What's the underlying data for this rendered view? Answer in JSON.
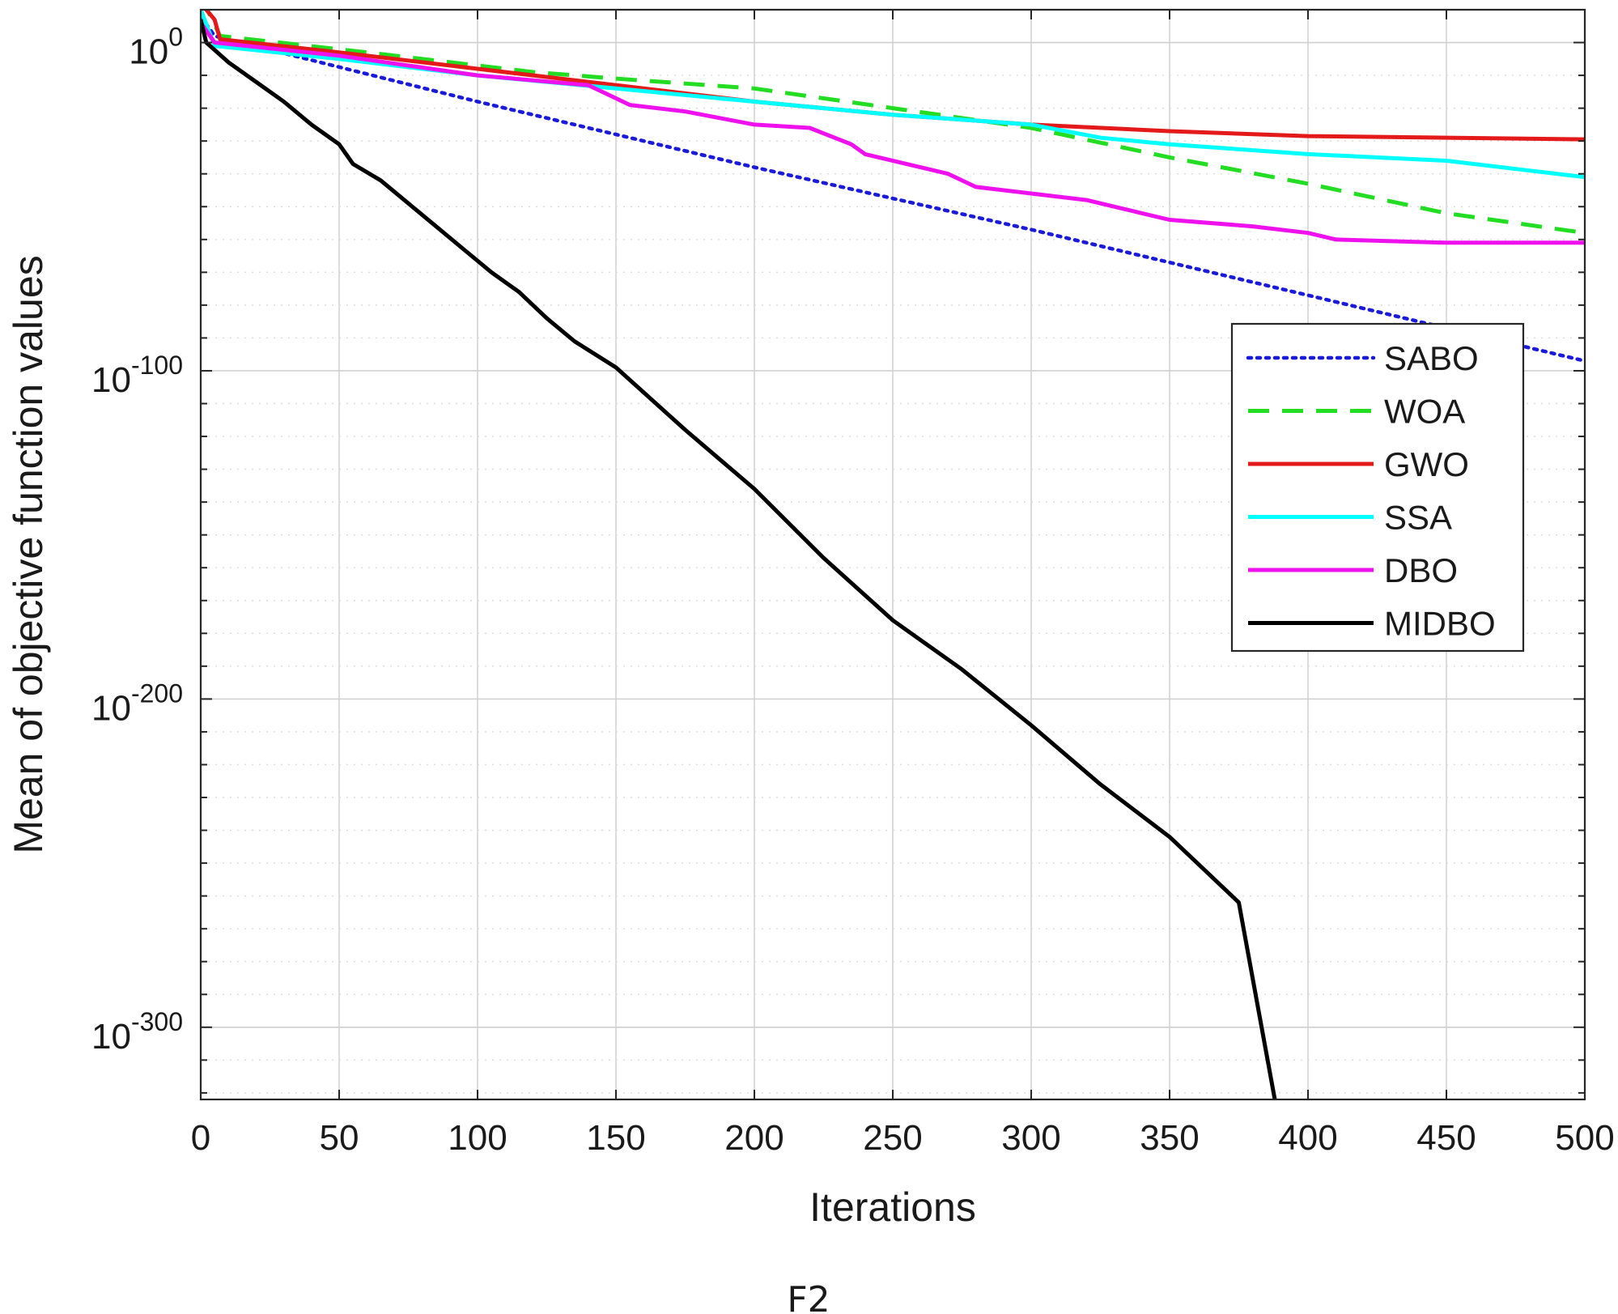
{
  "chart_data": {
    "type": "line",
    "caption": "F2",
    "xlabel": "Iterations",
    "ylabel": "Mean of objective function values",
    "yscale": "log",
    "grid": true,
    "legend_position": "right",
    "xlim": [
      0,
      500
    ],
    "ylim_log10": [
      -322,
      10
    ],
    "x_ticks": [
      0,
      50,
      100,
      150,
      200,
      250,
      300,
      350,
      400,
      450,
      500
    ],
    "x_tick_labels": [
      "0",
      "50",
      "100",
      "150",
      "200",
      "250",
      "300",
      "350",
      "400",
      "450",
      "500"
    ],
    "y_tick_exponents": [
      0,
      -100,
      -200,
      -300
    ],
    "y_tick_base": "10",
    "y_tick_sups": [
      "0",
      "-100",
      "-200",
      "-300"
    ],
    "series": [
      {
        "name": "SABO",
        "color": "#1a1adb",
        "style": "dotted",
        "points_log10": [
          [
            0,
            8
          ],
          [
            5,
            2
          ],
          [
            100,
            -18
          ],
          [
            200,
            -38
          ],
          [
            300,
            -57
          ],
          [
            400,
            -77
          ],
          [
            500,
            -97
          ]
        ]
      },
      {
        "name": "WOA",
        "color": "#22dd22",
        "style": "dashed",
        "points_log10": [
          [
            0,
            14
          ],
          [
            7,
            2
          ],
          [
            60,
            -3
          ],
          [
            120,
            -9
          ],
          [
            150,
            -11
          ],
          [
            200,
            -14
          ],
          [
            250,
            -20
          ],
          [
            300,
            -26
          ],
          [
            350,
            -35
          ],
          [
            400,
            -43
          ],
          [
            450,
            -52
          ],
          [
            500,
            -58
          ]
        ]
      },
      {
        "name": "GWO",
        "color": "#e41a1a",
        "style": "solid",
        "points_log10": [
          [
            0,
            12
          ],
          [
            5,
            7
          ],
          [
            7,
            1
          ],
          [
            50,
            -3
          ],
          [
            100,
            -8
          ],
          [
            150,
            -13
          ],
          [
            200,
            -18
          ],
          [
            250,
            -22
          ],
          [
            300,
            -25
          ],
          [
            350,
            -27
          ],
          [
            400,
            -28.5
          ],
          [
            450,
            -29
          ],
          [
            500,
            -29.5
          ]
        ]
      },
      {
        "name": "SSA",
        "color": "#00ffff",
        "style": "solid",
        "points_log10": [
          [
            0,
            10
          ],
          [
            5,
            -1
          ],
          [
            50,
            -5
          ],
          [
            100,
            -10
          ],
          [
            150,
            -14
          ],
          [
            200,
            -18
          ],
          [
            250,
            -22
          ],
          [
            300,
            -25
          ],
          [
            325,
            -29
          ],
          [
            350,
            -31
          ],
          [
            400,
            -34
          ],
          [
            450,
            -36
          ],
          [
            480,
            -39
          ],
          [
            500,
            -41
          ]
        ]
      },
      {
        "name": "DBO",
        "color": "#ee11ee",
        "style": "solid",
        "points_log10": [
          [
            0,
            6
          ],
          [
            5,
            0
          ],
          [
            50,
            -4
          ],
          [
            100,
            -10
          ],
          [
            140,
            -13
          ],
          [
            155,
            -19
          ],
          [
            175,
            -21
          ],
          [
            200,
            -25
          ],
          [
            220,
            -26
          ],
          [
            235,
            -31
          ],
          [
            240,
            -34
          ],
          [
            270,
            -40
          ],
          [
            280,
            -44
          ],
          [
            300,
            -46
          ],
          [
            320,
            -48
          ],
          [
            340,
            -52
          ],
          [
            350,
            -54
          ],
          [
            380,
            -56
          ],
          [
            400,
            -58
          ],
          [
            410,
            -60
          ],
          [
            450,
            -61
          ],
          [
            500,
            -61
          ]
        ]
      },
      {
        "name": "MIDBO",
        "color": "#000000",
        "style": "solid",
        "points_log10": [
          [
            0,
            7
          ],
          [
            2,
            0
          ],
          [
            10,
            -6
          ],
          [
            20,
            -12
          ],
          [
            30,
            -18
          ],
          [
            40,
            -25
          ],
          [
            50,
            -31
          ],
          [
            55,
            -37
          ],
          [
            65,
            -42
          ],
          [
            75,
            -49
          ],
          [
            85,
            -56
          ],
          [
            95,
            -63
          ],
          [
            105,
            -70
          ],
          [
            115,
            -76
          ],
          [
            125,
            -84
          ],
          [
            135,
            -91
          ],
          [
            150,
            -99
          ],
          [
            175,
            -118
          ],
          [
            200,
            -136
          ],
          [
            225,
            -157
          ],
          [
            250,
            -176
          ],
          [
            275,
            -191
          ],
          [
            300,
            -208
          ],
          [
            325,
            -226
          ],
          [
            350,
            -242
          ],
          [
            375,
            -262
          ],
          [
            388,
            -322
          ]
        ]
      }
    ]
  }
}
